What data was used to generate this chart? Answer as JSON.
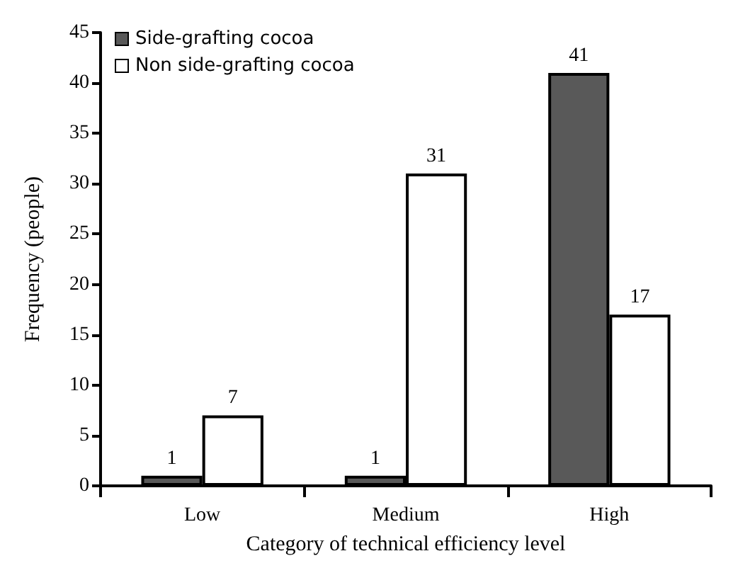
{
  "chart_data": {
    "type": "bar",
    "categories": [
      "Low",
      "Medium",
      "High"
    ],
    "series": [
      {
        "name": "Side-grafting cocoa",
        "color": "#595959",
        "values": [
          1,
          1,
          41
        ]
      },
      {
        "name": "Non side-grafting cocoa",
        "color": "#ffffff",
        "values": [
          7,
          31,
          17
        ]
      }
    ],
    "xlabel": "Category of technical efficiency level",
    "ylabel": "Frequency (people)",
    "ylim": [
      0,
      45
    ],
    "yticks": [
      0,
      5,
      10,
      15,
      20,
      25,
      30,
      35,
      40,
      45
    ],
    "data_labels": true,
    "legend": "top left",
    "grid": false
  }
}
